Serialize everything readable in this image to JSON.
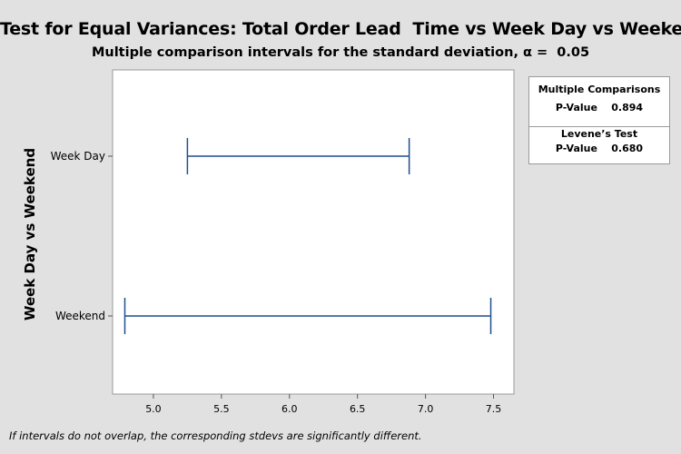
{
  "chart_data": {
    "type": "interval",
    "title": "Test for Equal Variances: Total Order Lead  Time vs Week Day vs Weekend",
    "subtitle": "Multiple comparison intervals for the standard deviation, α =  0.05",
    "ylabel": "Week Day vs Weekend",
    "xlabel": "",
    "categories": [
      "Week Day",
      "Weekend"
    ],
    "intervals": [
      {
        "category": "Week Day",
        "lower": 5.25,
        "upper": 6.88
      },
      {
        "category": "Weekend",
        "lower": 4.79,
        "upper": 7.48
      }
    ],
    "xlim": [
      4.7,
      7.65
    ],
    "xticks": [
      5.0,
      5.5,
      6.0,
      6.5,
      7.0,
      7.5
    ],
    "xtick_labels": [
      "5.0",
      "5.5",
      "6.0",
      "6.5",
      "7.0",
      "7.5"
    ],
    "grid": false,
    "line_color": "#1f4e8c"
  },
  "stats": {
    "multiple_comparisons_label": "Multiple Comparisons",
    "multiple_comparisons_pvalue": "P-Value    0.894",
    "levene_label": "Levene’s Test",
    "levene_pvalue": "P-Value    0.680"
  },
  "footnote": "If intervals do not overlap, the corresponding stdevs are significantly different."
}
